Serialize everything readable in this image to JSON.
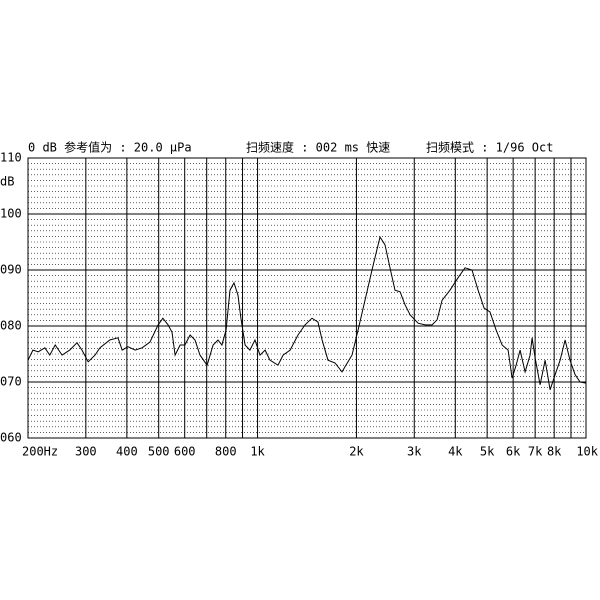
{
  "chart_data": {
    "type": "line",
    "annotations": [
      "0 dB 参考值为 : 20.0 μPa",
      "扫频速度 : 002 ms 快速",
      "扫频模式 : 1/96  Oct"
    ],
    "y_label": "dB",
    "xscale": "log",
    "xlim": [
      200,
      10000
    ],
    "ylim": [
      60,
      110
    ],
    "xticks": [
      {
        "value": 200,
        "label": "200Hz"
      },
      300,
      400,
      500,
      600,
      {
        "value": 700,
        "label": null
      },
      800,
      {
        "value": 900,
        "label": null
      },
      {
        "value": 1000,
        "label": "1k"
      },
      {
        "value": 2000,
        "label": "2k"
      },
      {
        "value": 3000,
        "label": "3k"
      },
      {
        "value": 4000,
        "label": "4k"
      },
      {
        "value": 5000,
        "label": "5k"
      },
      {
        "value": 6000,
        "label": "6k"
      },
      {
        "value": 7000,
        "label": "7k"
      },
      {
        "value": 8000,
        "label": "8k"
      },
      {
        "value": 9000,
        "label": null
      },
      {
        "value": 10000,
        "label": "10k"
      }
    ],
    "yticks": [
      {
        "value": 60,
        "label": "060"
      },
      {
        "value": 70,
        "label": "070"
      },
      {
        "value": 80,
        "label": "080"
      },
      {
        "value": 90,
        "label": "090"
      },
      100,
      110
    ],
    "grid": true,
    "minor_grid_step": 1,
    "color": "#000000",
    "x": [
      200,
      207,
      215,
      225,
      233,
      242,
      254,
      268,
      282,
      292,
      305,
      320,
      331,
      355,
      376,
      387,
      403,
      424,
      445,
      470,
      498,
      515,
      534,
      549,
      561,
      581,
      601,
      623,
      645,
      668,
      702,
      732,
      758,
      779,
      802,
      824,
      848,
      872,
      890,
      916,
      948,
      982,
      1017,
      1054,
      1091,
      1154,
      1196,
      1256,
      1328,
      1395,
      1465,
      1528,
      1572,
      1639,
      1722,
      1808,
      1885,
      1939,
      2023,
      2124,
      2231,
      2360,
      2444,
      2531,
      2621,
      2716,
      2812,
      2913,
      3081,
      3236,
      3399,
      3520,
      3646,
      3855,
      4077,
      4282,
      4498,
      4692,
      4894,
      5103,
      5323,
      5552,
      5790,
      5955,
      6124,
      6299,
      6523,
      6756,
      6851,
      6998,
      7247,
      7505,
      7773,
      8052,
      8337,
      8635,
      8942,
      9263,
      9593,
      10000
    ],
    "values": [
      73.9,
      75.7,
      75.4,
      76.1,
      74.8,
      76.6,
      74.8,
      75.7,
      77.0,
      75.7,
      73.6,
      74.8,
      76.1,
      77.5,
      77.9,
      75.7,
      76.3,
      75.7,
      76.1,
      77.1,
      80.2,
      81.4,
      80.2,
      78.9,
      74.8,
      76.6,
      76.6,
      78.4,
      77.5,
      74.8,
      73.0,
      76.6,
      77.5,
      76.6,
      79.3,
      86.4,
      87.7,
      85.5,
      81.4,
      76.6,
      75.7,
      77.5,
      74.8,
      75.7,
      73.9,
      73.0,
      74.8,
      75.7,
      78.4,
      80.2,
      81.4,
      80.7,
      77.5,
      73.9,
      73.4,
      71.8,
      73.6,
      74.8,
      79.3,
      84.6,
      90.0,
      95.9,
      94.5,
      90.4,
      86.4,
      86.1,
      83.8,
      82.0,
      80.5,
      80.2,
      80.2,
      81.1,
      84.6,
      86.4,
      88.6,
      90.4,
      90.0,
      86.4,
      83.2,
      82.5,
      79.3,
      76.6,
      75.7,
      70.7,
      73.0,
      75.7,
      71.8,
      74.8,
      77.9,
      74.3,
      69.5,
      73.9,
      68.6,
      71.3,
      73.9,
      77.5,
      73.9,
      71.3,
      70.0,
      69.8
    ]
  }
}
